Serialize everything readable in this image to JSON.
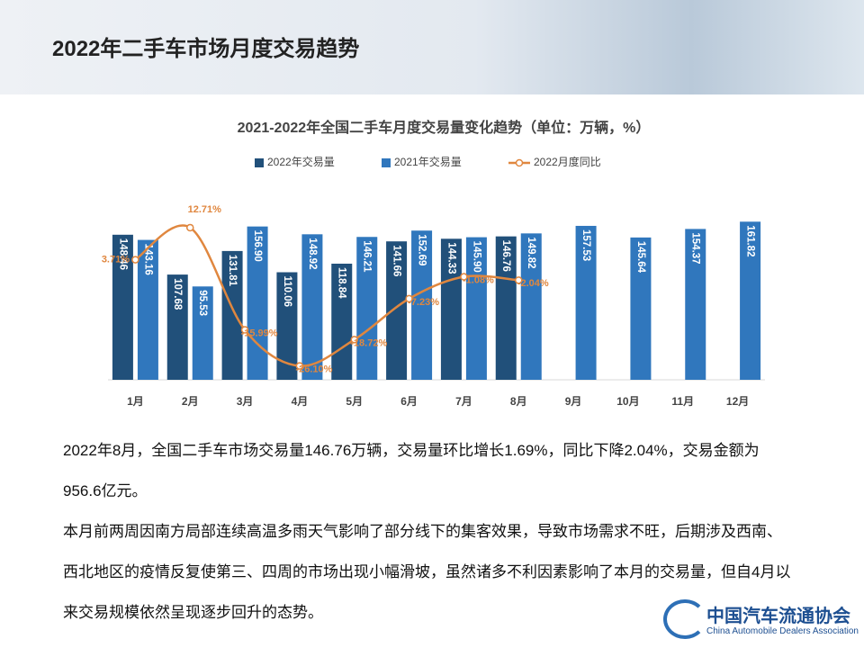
{
  "slide": {
    "title": "2022年二手车市场月度交易趋势",
    "paragraphs": [
      "2022年8月，全国二手车市场交易量146.76万辆，交易量环比增长1.69%，同比下降2.04%，交易金额为956.6亿元。",
      "本月前两周因南方局部连续高温多雨天气影响了部分线下的集客效果，导致市场需求不旺，后期涉及西南、西北地区的疫情反复使第三、四周的市场出现小幅滑坡，虽然诸多不利因素影响了本月的交易量，但自4月以来交易规模依然呈现逐步回升的态势。"
    ],
    "logo": {
      "name": "中国汽车流通协会",
      "subtitle": "China Automobile Dealers Association"
    }
  },
  "chart_data": {
    "type": "bar",
    "title": "2021-2022年全国二手车月度交易量变化趋势（单位：万辆，%）",
    "categories": [
      "1月",
      "2月",
      "3月",
      "4月",
      "5月",
      "6月",
      "7月",
      "8月",
      "9月",
      "10月",
      "11月",
      "12月"
    ],
    "series": [
      {
        "name": "2022年交易量",
        "color": "#21507a",
        "values": [
          148.46,
          107.68,
          131.81,
          110.06,
          118.84,
          141.66,
          144.33,
          146.76,
          null,
          null,
          null,
          null
        ]
      },
      {
        "name": "2021年交易量",
        "color": "#3077bd",
        "values": [
          143.16,
          95.53,
          156.9,
          148.92,
          146.21,
          152.69,
          145.9,
          149.82,
          157.53,
          145.64,
          154.37,
          161.82
        ],
        "value_labels": [
          "143.16",
          "95.53",
          "156.90",
          "148.92",
          "146.21",
          "152.69",
          "145.90",
          "149.82",
          "157.53",
          "145.64",
          "154.37",
          "161.82"
        ]
      },
      {
        "name": "2022月度同比",
        "type": "line",
        "axis": "y2",
        "color": "#e0873f",
        "values": [
          3.71,
          12.71,
          -15.99,
          -26.1,
          -18.72,
          -7.23,
          -1.08,
          -2.04,
          null,
          null,
          null,
          null
        ],
        "value_labels": [
          "3.71%",
          "12.71%",
          "-15.99%",
          "-26.10%",
          "-18.72%",
          "-7.23%",
          "-1.08%",
          "-2.04%",
          null,
          null,
          null,
          null
        ]
      }
    ],
    "ylim": [
      0,
      175
    ],
    "y2lim": [
      -30,
      18
    ],
    "legend": "top"
  }
}
